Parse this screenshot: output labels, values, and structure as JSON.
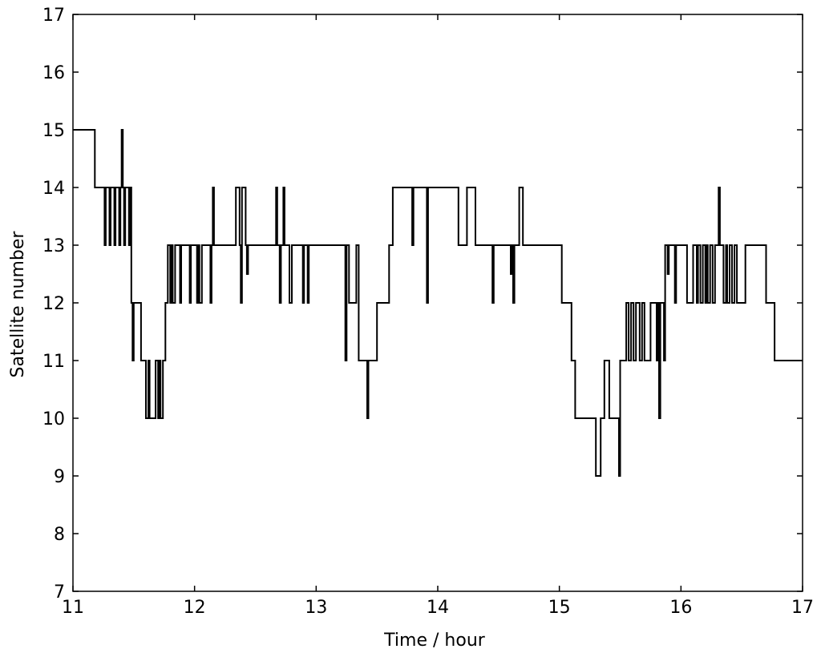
{
  "chart_data": {
    "type": "line",
    "step": true,
    "title": "",
    "xlabel": "Time / hour",
    "ylabel": "Satellite number",
    "xlim": [
      11,
      17
    ],
    "ylim": [
      7,
      17
    ],
    "xticks": [
      "11",
      "12",
      "13",
      "14",
      "15",
      "16",
      "17"
    ],
    "yticks": [
      "7",
      "8",
      "9",
      "10",
      "11",
      "12",
      "13",
      "14",
      "15",
      "16",
      "17"
    ],
    "grid": false,
    "legend": "none",
    "line_color": "#000000",
    "series": [
      {
        "points": [
          [
            11.0,
            15
          ],
          [
            11.18,
            15
          ],
          [
            11.18,
            14
          ],
          [
            11.26,
            14
          ],
          [
            11.26,
            13
          ],
          [
            11.27,
            13
          ],
          [
            11.27,
            14
          ],
          [
            11.3,
            14
          ],
          [
            11.3,
            13
          ],
          [
            11.31,
            13
          ],
          [
            11.31,
            14
          ],
          [
            11.34,
            14
          ],
          [
            11.34,
            13
          ],
          [
            11.35,
            13
          ],
          [
            11.35,
            14
          ],
          [
            11.38,
            14
          ],
          [
            11.38,
            13
          ],
          [
            11.39,
            13
          ],
          [
            11.39,
            14
          ],
          [
            11.4,
            14
          ],
          [
            11.4,
            15
          ],
          [
            11.41,
            15
          ],
          [
            11.41,
            14
          ],
          [
            11.42,
            14
          ],
          [
            11.42,
            13
          ],
          [
            11.43,
            13
          ],
          [
            11.43,
            14
          ],
          [
            11.46,
            14
          ],
          [
            11.46,
            13
          ],
          [
            11.47,
            13
          ],
          [
            11.47,
            14
          ],
          [
            11.48,
            14
          ],
          [
            11.48,
            12
          ],
          [
            11.49,
            12
          ],
          [
            11.49,
            11
          ],
          [
            11.5,
            11
          ],
          [
            11.5,
            12
          ],
          [
            11.56,
            12
          ],
          [
            11.56,
            11
          ],
          [
            11.6,
            11
          ],
          [
            11.6,
            10
          ],
          [
            11.62,
            10
          ],
          [
            11.62,
            11
          ],
          [
            11.63,
            11
          ],
          [
            11.63,
            10
          ],
          [
            11.68,
            10
          ],
          [
            11.68,
            11
          ],
          [
            11.7,
            11
          ],
          [
            11.7,
            10
          ],
          [
            11.71,
            10
          ],
          [
            11.71,
            11
          ],
          [
            11.72,
            11
          ],
          [
            11.72,
            10
          ],
          [
            11.74,
            10
          ],
          [
            11.74,
            11
          ],
          [
            11.76,
            11
          ],
          [
            11.76,
            12
          ],
          [
            11.78,
            12
          ],
          [
            11.78,
            13
          ],
          [
            11.8,
            13
          ],
          [
            11.8,
            12
          ],
          [
            11.81,
            12
          ],
          [
            11.81,
            13
          ],
          [
            11.82,
            13
          ],
          [
            11.82,
            12
          ],
          [
            11.84,
            12
          ],
          [
            11.84,
            13
          ],
          [
            11.88,
            13
          ],
          [
            11.88,
            12
          ],
          [
            11.89,
            12
          ],
          [
            11.89,
            13
          ],
          [
            11.96,
            13
          ],
          [
            11.96,
            12
          ],
          [
            11.97,
            12
          ],
          [
            11.97,
            13
          ],
          [
            12.02,
            13
          ],
          [
            12.02,
            12
          ],
          [
            12.03,
            12
          ],
          [
            12.03,
            13
          ],
          [
            12.04,
            13
          ],
          [
            12.04,
            12
          ],
          [
            12.06,
            12
          ],
          [
            12.06,
            13
          ],
          [
            12.13,
            13
          ],
          [
            12.13,
            12
          ],
          [
            12.14,
            12
          ],
          [
            12.14,
            13
          ],
          [
            12.15,
            13
          ],
          [
            12.15,
            14
          ],
          [
            12.16,
            14
          ],
          [
            12.16,
            13
          ],
          [
            12.34,
            13
          ],
          [
            12.34,
            14
          ],
          [
            12.37,
            14
          ],
          [
            12.37,
            13
          ],
          [
            12.38,
            13
          ],
          [
            12.38,
            12
          ],
          [
            12.39,
            12
          ],
          [
            12.39,
            14
          ],
          [
            12.42,
            14
          ],
          [
            12.42,
            13
          ],
          [
            12.43,
            13
          ],
          [
            12.43,
            12.5
          ],
          [
            12.44,
            12.5
          ],
          [
            12.44,
            13
          ],
          [
            12.67,
            13
          ],
          [
            12.67,
            14
          ],
          [
            12.68,
            14
          ],
          [
            12.68,
            13
          ],
          [
            12.7,
            13
          ],
          [
            12.7,
            12
          ],
          [
            12.71,
            12
          ],
          [
            12.71,
            13
          ],
          [
            12.73,
            13
          ],
          [
            12.73,
            14
          ],
          [
            12.74,
            14
          ],
          [
            12.74,
            13
          ],
          [
            12.78,
            13
          ],
          [
            12.78,
            12
          ],
          [
            12.8,
            12
          ],
          [
            12.8,
            13
          ],
          [
            12.89,
            13
          ],
          [
            12.89,
            12
          ],
          [
            12.9,
            12
          ],
          [
            12.9,
            13
          ],
          [
            12.93,
            13
          ],
          [
            12.93,
            12
          ],
          [
            12.94,
            12
          ],
          [
            12.94,
            13
          ],
          [
            13.24,
            13
          ],
          [
            13.24,
            11
          ],
          [
            13.25,
            11
          ],
          [
            13.25,
            13
          ],
          [
            13.27,
            13
          ],
          [
            13.27,
            12
          ],
          [
            13.33,
            12
          ],
          [
            13.33,
            13
          ],
          [
            13.35,
            13
          ],
          [
            13.35,
            11
          ],
          [
            13.42,
            11
          ],
          [
            13.42,
            10
          ],
          [
            13.43,
            10
          ],
          [
            13.43,
            11
          ],
          [
            13.5,
            11
          ],
          [
            13.5,
            12
          ],
          [
            13.6,
            12
          ],
          [
            13.6,
            13
          ],
          [
            13.63,
            13
          ],
          [
            13.63,
            14
          ],
          [
            13.79,
            14
          ],
          [
            13.79,
            13
          ],
          [
            13.8,
            13
          ],
          [
            13.8,
            14
          ],
          [
            13.91,
            14
          ],
          [
            13.91,
            12
          ],
          [
            13.92,
            12
          ],
          [
            13.92,
            14
          ],
          [
            14.17,
            14
          ],
          [
            14.17,
            13
          ],
          [
            14.24,
            13
          ],
          [
            14.24,
            14
          ],
          [
            14.31,
            14
          ],
          [
            14.31,
            13
          ],
          [
            14.45,
            13
          ],
          [
            14.45,
            12
          ],
          [
            14.46,
            12
          ],
          [
            14.46,
            13
          ],
          [
            14.6,
            13
          ],
          [
            14.6,
            12.5
          ],
          [
            14.61,
            12.5
          ],
          [
            14.61,
            13
          ],
          [
            14.62,
            13
          ],
          [
            14.62,
            12
          ],
          [
            14.63,
            12
          ],
          [
            14.63,
            13
          ],
          [
            14.67,
            13
          ],
          [
            14.67,
            14
          ],
          [
            14.7,
            14
          ],
          [
            14.7,
            13
          ],
          [
            15.02,
            13
          ],
          [
            15.02,
            12
          ],
          [
            15.1,
            12
          ],
          [
            15.1,
            11
          ],
          [
            15.13,
            11
          ],
          [
            15.13,
            10
          ],
          [
            15.3,
            10
          ],
          [
            15.3,
            9
          ],
          [
            15.34,
            9
          ],
          [
            15.34,
            10
          ],
          [
            15.37,
            10
          ],
          [
            15.37,
            11
          ],
          [
            15.41,
            11
          ],
          [
            15.41,
            10
          ],
          [
            15.49,
            10
          ],
          [
            15.49,
            9
          ],
          [
            15.5,
            9
          ],
          [
            15.5,
            11
          ],
          [
            15.55,
            11
          ],
          [
            15.55,
            12
          ],
          [
            15.57,
            12
          ],
          [
            15.57,
            11
          ],
          [
            15.59,
            11
          ],
          [
            15.59,
            12
          ],
          [
            15.61,
            12
          ],
          [
            15.61,
            11
          ],
          [
            15.63,
            11
          ],
          [
            15.63,
            12
          ],
          [
            15.66,
            12
          ],
          [
            15.66,
            11
          ],
          [
            15.68,
            11
          ],
          [
            15.68,
            12
          ],
          [
            15.7,
            12
          ],
          [
            15.7,
            11
          ],
          [
            15.75,
            11
          ],
          [
            15.75,
            12
          ],
          [
            15.8,
            12
          ],
          [
            15.8,
            11
          ],
          [
            15.81,
            11
          ],
          [
            15.81,
            12
          ],
          [
            15.82,
            12
          ],
          [
            15.82,
            10
          ],
          [
            15.83,
            10
          ],
          [
            15.83,
            12
          ],
          [
            15.86,
            12
          ],
          [
            15.86,
            11
          ],
          [
            15.87,
            11
          ],
          [
            15.87,
            13
          ],
          [
            15.89,
            13
          ],
          [
            15.89,
            12.5
          ],
          [
            15.9,
            12.5
          ],
          [
            15.9,
            13
          ],
          [
            15.95,
            13
          ],
          [
            15.95,
            12
          ],
          [
            15.96,
            12
          ],
          [
            15.96,
            13
          ],
          [
            16.05,
            13
          ],
          [
            16.05,
            12
          ],
          [
            16.1,
            12
          ],
          [
            16.1,
            13
          ],
          [
            16.13,
            13
          ],
          [
            16.13,
            12
          ],
          [
            16.14,
            12
          ],
          [
            16.14,
            13
          ],
          [
            16.16,
            13
          ],
          [
            16.16,
            12
          ],
          [
            16.18,
            12
          ],
          [
            16.18,
            13
          ],
          [
            16.2,
            13
          ],
          [
            16.2,
            12
          ],
          [
            16.21,
            12
          ],
          [
            16.21,
            13
          ],
          [
            16.22,
            13
          ],
          [
            16.22,
            12
          ],
          [
            16.24,
            12
          ],
          [
            16.24,
            13
          ],
          [
            16.26,
            13
          ],
          [
            16.26,
            12
          ],
          [
            16.28,
            12
          ],
          [
            16.28,
            13
          ],
          [
            16.31,
            13
          ],
          [
            16.31,
            14
          ],
          [
            16.32,
            14
          ],
          [
            16.32,
            13
          ],
          [
            16.35,
            13
          ],
          [
            16.35,
            12
          ],
          [
            16.37,
            12
          ],
          [
            16.37,
            13
          ],
          [
            16.38,
            13
          ],
          [
            16.38,
            12
          ],
          [
            16.4,
            12
          ],
          [
            16.4,
            13
          ],
          [
            16.42,
            13
          ],
          [
            16.42,
            12
          ],
          [
            16.44,
            12
          ],
          [
            16.44,
            13
          ],
          [
            16.46,
            13
          ],
          [
            16.46,
            12
          ],
          [
            16.53,
            12
          ],
          [
            16.53,
            13
          ],
          [
            16.7,
            13
          ],
          [
            16.7,
            12
          ],
          [
            16.77,
            12
          ],
          [
            16.77,
            11
          ],
          [
            17.0,
            11
          ]
        ]
      }
    ]
  }
}
